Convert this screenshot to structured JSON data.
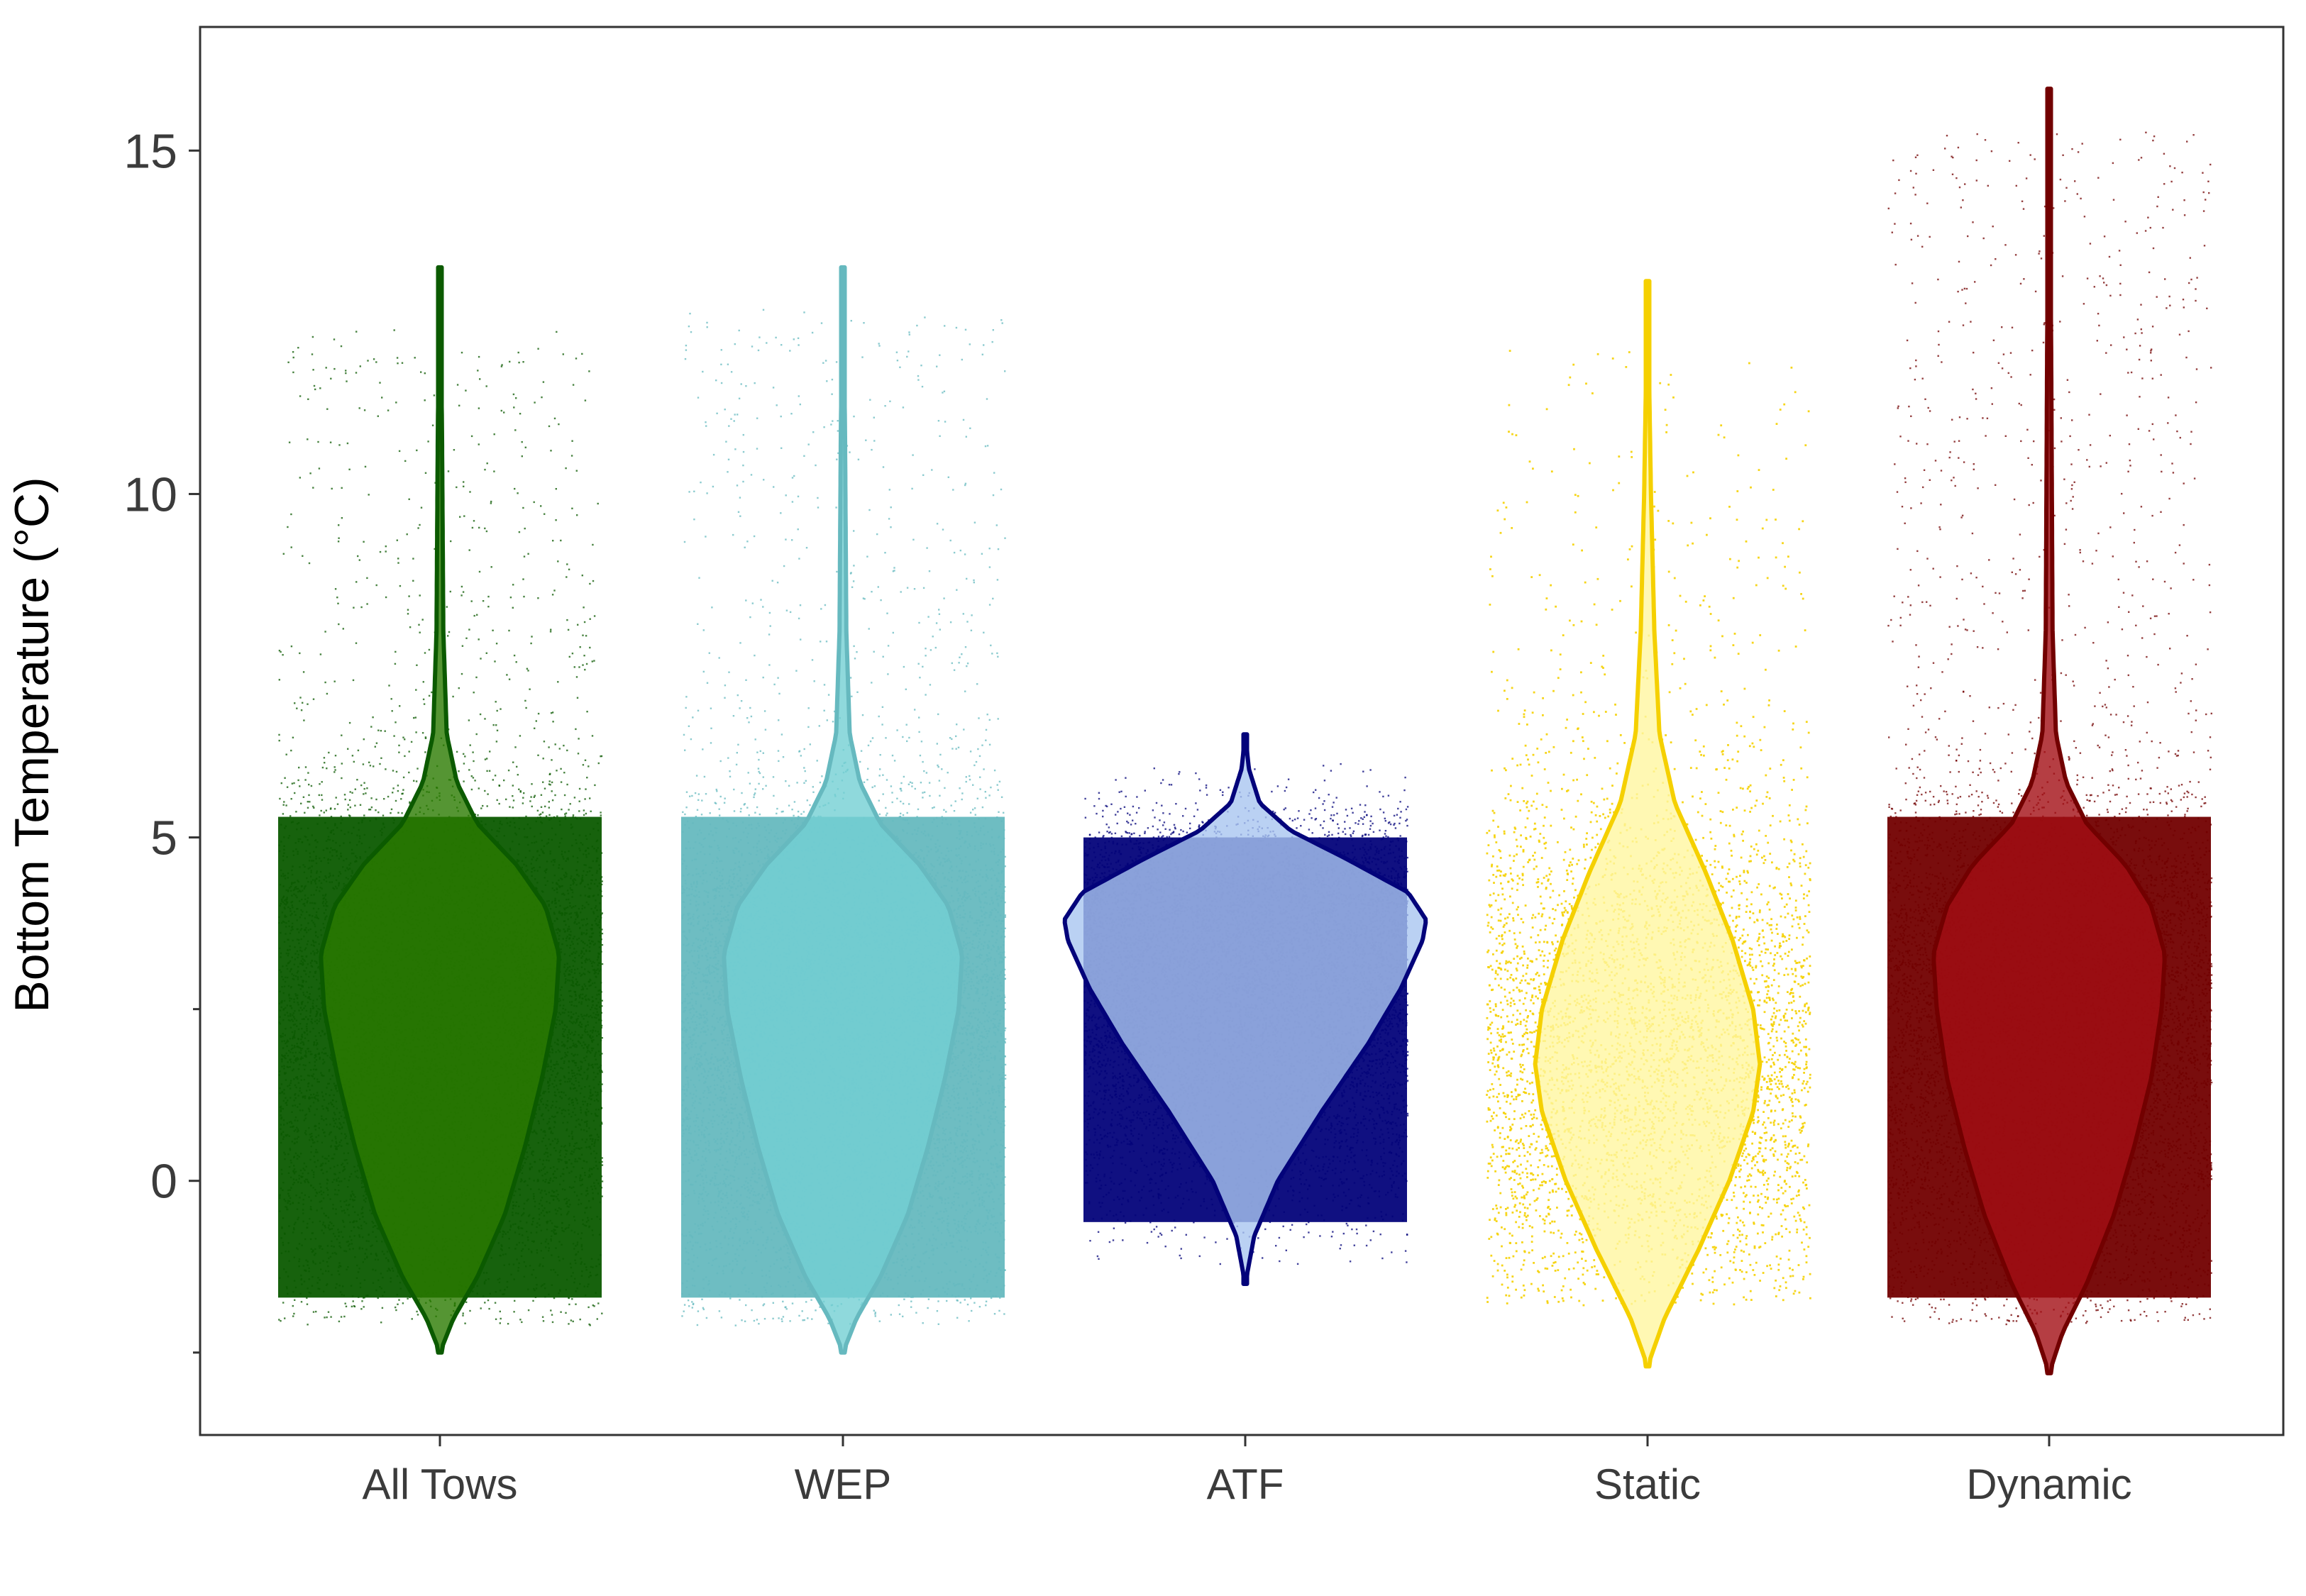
{
  "chart_data": {
    "type": "violin",
    "title": "",
    "xlabel": "",
    "ylabel": "Bottom Temperature (°C)",
    "ylim": [
      -3.7,
      16.8
    ],
    "y_major_ticks": [
      0,
      5,
      10,
      15
    ],
    "y_minor_ticks": [
      -2.5,
      2.5
    ],
    "grid": false,
    "legend": "none",
    "categories": [
      "All Tows",
      "WEP",
      "ATF",
      "Static",
      "Dynamic"
    ],
    "series": [
      {
        "category": "All Tows",
        "point_color": "#0b5a00",
        "violin_fill": "#2a7a00",
        "violin_line": "#0b5a00",
        "min": -2.5,
        "max": 13.3,
        "points_min": -2.1,
        "points_max": 12.4,
        "point_density": "dense",
        "violin_profile": [
          [
            -2.5,
            0.0
          ],
          [
            -2.0,
            0.08
          ],
          [
            -1.4,
            0.22
          ],
          [
            -0.5,
            0.38
          ],
          [
            0.5,
            0.5
          ],
          [
            1.5,
            0.6
          ],
          [
            2.5,
            0.68
          ],
          [
            3.3,
            0.7
          ],
          [
            4.0,
            0.62
          ],
          [
            4.6,
            0.45
          ],
          [
            5.2,
            0.22
          ],
          [
            5.8,
            0.1
          ],
          [
            6.5,
            0.04
          ],
          [
            8.0,
            0.02
          ],
          [
            11.0,
            0.012
          ],
          [
            13.3,
            0.0
          ]
        ]
      },
      {
        "category": "WEP",
        "point_color": "#66b9bf",
        "violin_fill": "#73d0d3",
        "violin_line": "#66b9bf",
        "min": -2.5,
        "max": 13.3,
        "points_min": -2.1,
        "points_max": 12.7,
        "point_density": "dense",
        "violin_profile": [
          [
            -2.5,
            0.0
          ],
          [
            -2.0,
            0.08
          ],
          [
            -1.4,
            0.22
          ],
          [
            -0.5,
            0.38
          ],
          [
            0.5,
            0.5
          ],
          [
            1.5,
            0.6
          ],
          [
            2.5,
            0.68
          ],
          [
            3.3,
            0.7
          ],
          [
            4.0,
            0.62
          ],
          [
            4.6,
            0.45
          ],
          [
            5.2,
            0.22
          ],
          [
            5.8,
            0.1
          ],
          [
            6.5,
            0.04
          ],
          [
            8.0,
            0.02
          ],
          [
            11.0,
            0.012
          ],
          [
            13.3,
            0.0
          ]
        ]
      },
      {
        "category": "ATF",
        "point_color": "#03037a",
        "violin_fill": "#a9c6f0",
        "violin_line": "#03037a",
        "min": -1.5,
        "max": 6.5,
        "points_min": -1.2,
        "points_max": 6.1,
        "point_density": "dense",
        "violin_profile": [
          [
            -1.5,
            0.0
          ],
          [
            -0.8,
            0.05
          ],
          [
            0.0,
            0.18
          ],
          [
            1.0,
            0.42
          ],
          [
            2.0,
            0.68
          ],
          [
            2.8,
            0.86
          ],
          [
            3.5,
            0.98
          ],
          [
            3.8,
            1.0
          ],
          [
            4.2,
            0.9
          ],
          [
            4.7,
            0.55
          ],
          [
            5.1,
            0.25
          ],
          [
            5.5,
            0.08
          ],
          [
            6.0,
            0.02
          ],
          [
            6.5,
            0.0
          ]
        ]
      },
      {
        "category": "Static",
        "point_color": "#f5d000",
        "violin_fill": "#fff6a0",
        "violin_line": "#f5d000",
        "min": -2.7,
        "max": 13.1,
        "points_min": -1.8,
        "points_max": 12.1,
        "point_density": "sparse",
        "violin_profile": [
          [
            -2.7,
            0.0
          ],
          [
            -2.0,
            0.1
          ],
          [
            -1.0,
            0.3
          ],
          [
            0.0,
            0.48
          ],
          [
            1.0,
            0.62
          ],
          [
            1.7,
            0.66
          ],
          [
            2.5,
            0.62
          ],
          [
            3.5,
            0.5
          ],
          [
            4.5,
            0.34
          ],
          [
            5.5,
            0.16
          ],
          [
            6.5,
            0.07
          ],
          [
            8.0,
            0.04
          ],
          [
            10.0,
            0.02
          ],
          [
            13.1,
            0.0
          ]
        ]
      },
      {
        "category": "Dynamic",
        "point_color": "#720000",
        "violin_fill": "#a30e14",
        "violin_line": "#720000",
        "min": -2.8,
        "max": 15.9,
        "points_min": -2.1,
        "points_max": 15.3,
        "point_density": "dense",
        "violin_profile": [
          [
            -2.8,
            0.0
          ],
          [
            -2.2,
            0.08
          ],
          [
            -1.5,
            0.22
          ],
          [
            -0.5,
            0.38
          ],
          [
            0.5,
            0.5
          ],
          [
            1.5,
            0.6
          ],
          [
            2.5,
            0.66
          ],
          [
            3.3,
            0.68
          ],
          [
            4.0,
            0.6
          ],
          [
            4.6,
            0.45
          ],
          [
            5.2,
            0.22
          ],
          [
            5.8,
            0.1
          ],
          [
            6.5,
            0.04
          ],
          [
            8.0,
            0.02
          ],
          [
            12.0,
            0.012
          ],
          [
            15.9,
            0.0
          ]
        ]
      }
    ]
  }
}
